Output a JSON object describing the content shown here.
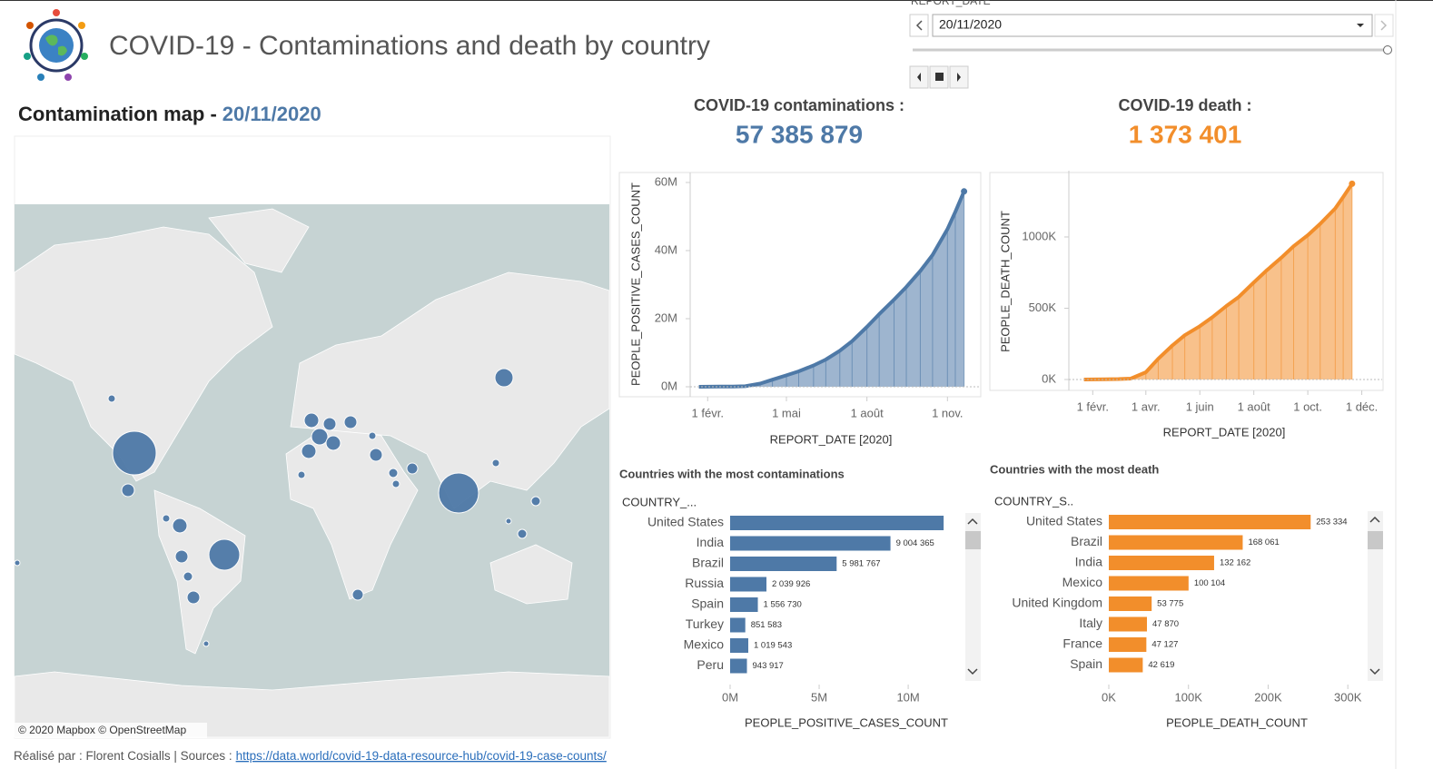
{
  "header": {
    "title": "COVID-19 - Contaminations and death by country"
  },
  "filter": {
    "label": "REPORT_DATE",
    "date": "20/11/2020"
  },
  "map": {
    "title": "Contamination map -",
    "date": "20/11/2020",
    "credits": "© 2020 Mapbox © OpenStreetMap"
  },
  "kpis": [
    {
      "label": "COVID-19 contaminations :",
      "value": "57 385 879"
    },
    {
      "label": "COVID-19 death  :",
      "value": "1 373 401"
    }
  ],
  "chart_data": [
    {
      "type": "area",
      "y_label": "PEOPLE_POSITIVE_CASES_COUNT",
      "x_label": "REPORT_DATE [2020]",
      "color": "#4e79a7",
      "x": [
        "2020-01-22",
        "2020-02-15",
        "2020-03-01",
        "2020-03-15",
        "2020-04-01",
        "2020-04-15",
        "2020-05-01",
        "2020-05-15",
        "2020-06-01",
        "2020-06-15",
        "2020-07-01",
        "2020-07-15",
        "2020-08-01",
        "2020-08-15",
        "2020-09-01",
        "2020-09-15",
        "2020-10-01",
        "2020-10-15",
        "2020-11-01",
        "2020-11-10",
        "2020-11-20"
      ],
      "values": [
        555,
        69000,
        88000,
        167000,
        932000,
        2080000,
        3350000,
        4540000,
        6260000,
        8000000,
        10600000,
        13400000,
        17600000,
        21300000,
        25600000,
        29300000,
        34000000,
        38700000,
        46300000,
        51400000,
        57385879
      ],
      "xlim": [
        "2020-01-12",
        "2020-12-07"
      ],
      "xticks": [
        {
          "value": "2020-02-01",
          "label": "1 févr."
        },
        {
          "value": "2020-05-01",
          "label": "1 mai"
        },
        {
          "value": "2020-08-01",
          "label": "1 août"
        },
        {
          "value": "2020-11-01",
          "label": "1 nov."
        }
      ],
      "ylim": [
        0,
        62400000
      ],
      "yticks": [
        {
          "value": 0,
          "label": "0M"
        },
        {
          "value": 20000000,
          "label": "20M"
        },
        {
          "value": 40000000,
          "label": "40M"
        },
        {
          "value": 60000000,
          "label": "60M"
        }
      ]
    },
    {
      "type": "area",
      "y_label": "PEOPLE_DEATH_COUNT",
      "x_label": "REPORT_DATE [2020]",
      "color": "#f28e2b",
      "x": [
        "2020-01-22",
        "2020-02-15",
        "2020-03-01",
        "2020-03-15",
        "2020-04-01",
        "2020-04-15",
        "2020-05-01",
        "2020-05-15",
        "2020-06-01",
        "2020-06-15",
        "2020-07-01",
        "2020-07-15",
        "2020-08-01",
        "2020-08-15",
        "2020-09-01",
        "2020-09-15",
        "2020-10-01",
        "2020-10-15",
        "2020-11-01",
        "2020-11-10",
        "2020-11-20"
      ],
      "values": [
        17,
        1700,
        3000,
        6500,
        51000,
        145000,
        239000,
        311000,
        374000,
        436000,
        516000,
        579000,
        681000,
        762000,
        854000,
        935000,
        1012000,
        1092000,
        1200000,
        1280000,
        1373401
      ],
      "xlim": [
        "2020-01-05",
        "2020-12-24"
      ],
      "xticks": [
        {
          "value": "2020-02-01",
          "label": "1 févr."
        },
        {
          "value": "2020-04-01",
          "label": "1 avr."
        },
        {
          "value": "2020-06-01",
          "label": "1 juin"
        },
        {
          "value": "2020-08-01",
          "label": "1 août"
        },
        {
          "value": "2020-10-01",
          "label": "1 oct."
        },
        {
          "value": "2020-12-01",
          "label": "1 déc."
        }
      ],
      "ylim": [
        0,
        1452000
      ],
      "yticks": [
        {
          "value": 0,
          "label": "0K"
        },
        {
          "value": 500000,
          "label": "500K"
        },
        {
          "value": 1000000,
          "label": "1000K"
        }
      ]
    },
    {
      "type": "hbar",
      "title": "Countries with the most contaminations",
      "y_label": "COUNTRY_...",
      "x_label": "PEOPLE_POSITIVE_CASES_COUNT",
      "color": "#4e79a7",
      "categories": [
        "United States",
        "India",
        "Brazil",
        "Russia",
        "Spain",
        "Turkey",
        "Mexico",
        "Peru"
      ],
      "values": [
        11990000,
        9004365,
        5981767,
        2039926,
        1556730,
        851583,
        1019543,
        943917
      ],
      "value_labels": [
        null,
        "9 004 365",
        "5 981 767",
        "2 039 926",
        "1 556 730",
        "851 583",
        "1 019 543",
        "943 917"
      ],
      "xlim": [
        0,
        12800000
      ],
      "xticks": [
        {
          "value": 0,
          "label": "0M"
        },
        {
          "value": 5000000,
          "label": "5M"
        },
        {
          "value": 10000000,
          "label": "10M"
        }
      ]
    },
    {
      "type": "hbar",
      "title": "Countries with the most death",
      "y_label": "COUNTRY_S..",
      "x_label": "PEOPLE_DEATH_COUNT",
      "color": "#f28e2b",
      "categories": [
        "United States",
        "Brazil",
        "India",
        "Mexico",
        "United Kingdom",
        "Italy",
        "France",
        "Spain"
      ],
      "values": [
        253334,
        168061,
        132162,
        100104,
        53775,
        47870,
        47127,
        42619
      ],
      "value_labels": [
        "253 334",
        "168 061",
        "132 162",
        "100 104",
        "53 775",
        "47 870",
        "47 127",
        "42 619"
      ],
      "xlim": [
        0,
        318000
      ],
      "xticks": [
        {
          "value": 0,
          "label": "0K"
        },
        {
          "value": 100000,
          "label": "100K"
        },
        {
          "value": 200000,
          "label": "200K"
        },
        {
          "value": 300000,
          "label": "300K"
        }
      ]
    }
  ],
  "footer": {
    "text": "Réalisé par : Florent Cosialls | Sources :",
    "link": "https://data.world/covid-19-data-resource-hub/covid-19-case-counts/"
  }
}
